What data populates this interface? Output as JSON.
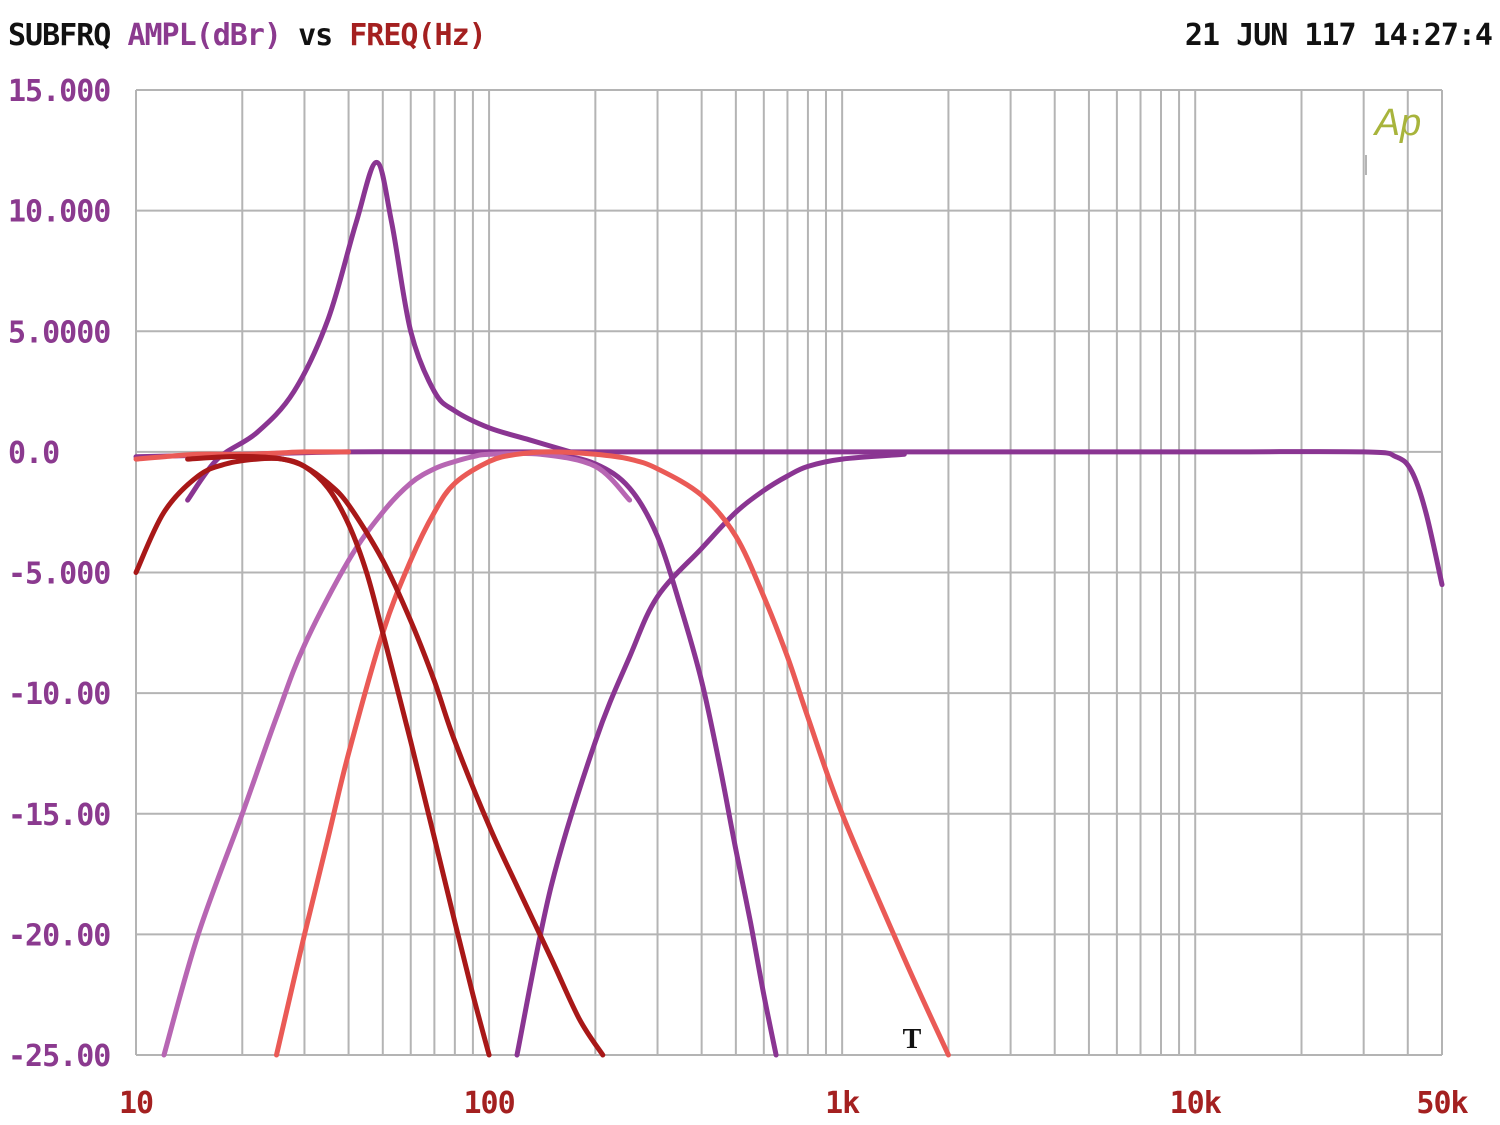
{
  "header": {
    "title_a": "SUBFRQ",
    "title_b": "AMPL(dBr)",
    "title_c": "vs",
    "title_d": "FREQ(Hz)",
    "timestamp": "21 JUN 117 14:27:4"
  },
  "logo": "Ap",
  "cursor_marker": "T",
  "colors": {
    "grid": "#b4b4b4",
    "axis_y_text": "#8b3a8f",
    "axis_x_text": "#a42020",
    "logo": "#a8b43c",
    "purple": "#8a3592",
    "light_purple": "#b766b3",
    "dark_red": "#a81818",
    "salmon": "#ea5a56"
  },
  "chart_data": {
    "type": "line",
    "xscale": "log",
    "xlim": [
      10,
      50000
    ],
    "ylim": [
      -25,
      15
    ],
    "grid": true,
    "xlabel": "FREQ(Hz)",
    "ylabel": "AMPL(dBr)",
    "x_ticks": [
      {
        "value": 10,
        "label": "10"
      },
      {
        "value": 100,
        "label": "100"
      },
      {
        "value": 1000,
        "label": "1k"
      },
      {
        "value": 10000,
        "label": "10k"
      },
      {
        "value": 50000,
        "label": "50k"
      }
    ],
    "y_ticks": [
      {
        "value": 15,
        "label": "15.000"
      },
      {
        "value": 10,
        "label": "10.000"
      },
      {
        "value": 5,
        "label": "5.0000"
      },
      {
        "value": 0,
        "label": "0.0"
      },
      {
        "value": -5,
        "label": "-5.000"
      },
      {
        "value": -10,
        "label": "-10.00"
      },
      {
        "value": -15,
        "label": "-15.00"
      },
      {
        "value": -20,
        "label": "-20.00"
      },
      {
        "value": -25,
        "label": "-25.00"
      }
    ],
    "series": [
      {
        "color": "#8a3592",
        "x": [
          14,
          17,
          22,
          28,
          35,
          42,
          48,
          53,
          60,
          70,
          80,
          100,
          130,
          170
        ],
        "y": [
          -2.0,
          -0.3,
          0.8,
          2.5,
          5.5,
          9.5,
          12.0,
          9.5,
          5.0,
          2.5,
          1.7,
          1.0,
          0.5,
          0.0
        ]
      },
      {
        "color": "#8a3592",
        "x": [
          10,
          20,
          40,
          100,
          1000,
          10000,
          30000,
          37000,
          41000,
          45000,
          50000
        ],
        "y": [
          -0.2,
          -0.1,
          0.0,
          0.0,
          0.0,
          0.0,
          0.0,
          -0.2,
          -0.8,
          -2.5,
          -5.5
        ]
      },
      {
        "color": "#8a3592",
        "x": [
          120,
          150,
          200,
          250,
          300,
          400,
          500,
          600,
          700,
          800,
          1000,
          1500
        ],
        "y": [
          -25.0,
          -18.0,
          -12.0,
          -8.5,
          -6.0,
          -4.0,
          -2.5,
          -1.6,
          -1.0,
          -0.6,
          -0.3,
          -0.1
        ]
      },
      {
        "color": "#8a3592",
        "x": [
          100,
          150,
          200,
          250,
          300,
          350,
          400,
          450,
          500,
          550,
          600,
          650
        ],
        "y": [
          0.0,
          -0.1,
          -0.5,
          -1.5,
          -3.5,
          -6.5,
          -9.5,
          -13.0,
          -16.5,
          -19.5,
          -22.5,
          -25.0
        ]
      },
      {
        "color": "#b766b3",
        "x": [
          12,
          15,
          20,
          25,
          30,
          40,
          50,
          60,
          70,
          80,
          90,
          100,
          140,
          200,
          250
        ],
        "y": [
          -25.0,
          -20.0,
          -15.0,
          -11.0,
          -8.0,
          -4.5,
          -2.5,
          -1.3,
          -0.7,
          -0.4,
          -0.2,
          -0.1,
          -0.1,
          -0.6,
          -2.0
        ]
      },
      {
        "color": "#ea5a56",
        "x": [
          10,
          12,
          15,
          20,
          25,
          30,
          40
        ],
        "y": [
          -0.3,
          -0.2,
          -0.1,
          -0.1,
          -0.05,
          0.0,
          0.0
        ]
      },
      {
        "color": "#ea5a56",
        "x": [
          25,
          30,
          35,
          40,
          50,
          60,
          70,
          80,
          100,
          120,
          150,
          200,
          250,
          300,
          400,
          500,
          600,
          700,
          800,
          1000,
          1500,
          2000
        ],
        "y": [
          -25.0,
          -20.0,
          -16.0,
          -12.5,
          -7.5,
          -4.5,
          -2.5,
          -1.3,
          -0.4,
          -0.1,
          0.0,
          -0.1,
          -0.3,
          -0.7,
          -1.8,
          -3.5,
          -6.0,
          -8.5,
          -11.0,
          -15.0,
          -21.0,
          -25.0
        ]
      },
      {
        "color": "#a81818",
        "x": [
          10,
          12,
          15,
          18,
          22,
          26,
          30,
          35,
          40,
          45,
          50,
          60,
          70,
          80,
          90,
          100
        ],
        "y": [
          -5.0,
          -2.5,
          -1.0,
          -0.5,
          -0.3,
          -0.3,
          -0.6,
          -1.5,
          -3.0,
          -5.0,
          -7.5,
          -12.0,
          -16.0,
          -19.5,
          -22.5,
          -25.0
        ]
      },
      {
        "color": "#a81818",
        "x": [
          14,
          18,
          22,
          26,
          30,
          35,
          40,
          50,
          60,
          70,
          80,
          100,
          120,
          150,
          180,
          210
        ],
        "y": [
          -0.3,
          -0.2,
          -0.2,
          -0.3,
          -0.6,
          -1.3,
          -2.2,
          -4.5,
          -7.0,
          -9.5,
          -12.0,
          -15.5,
          -18.0,
          -21.0,
          -23.5,
          -25.0
        ]
      }
    ]
  }
}
